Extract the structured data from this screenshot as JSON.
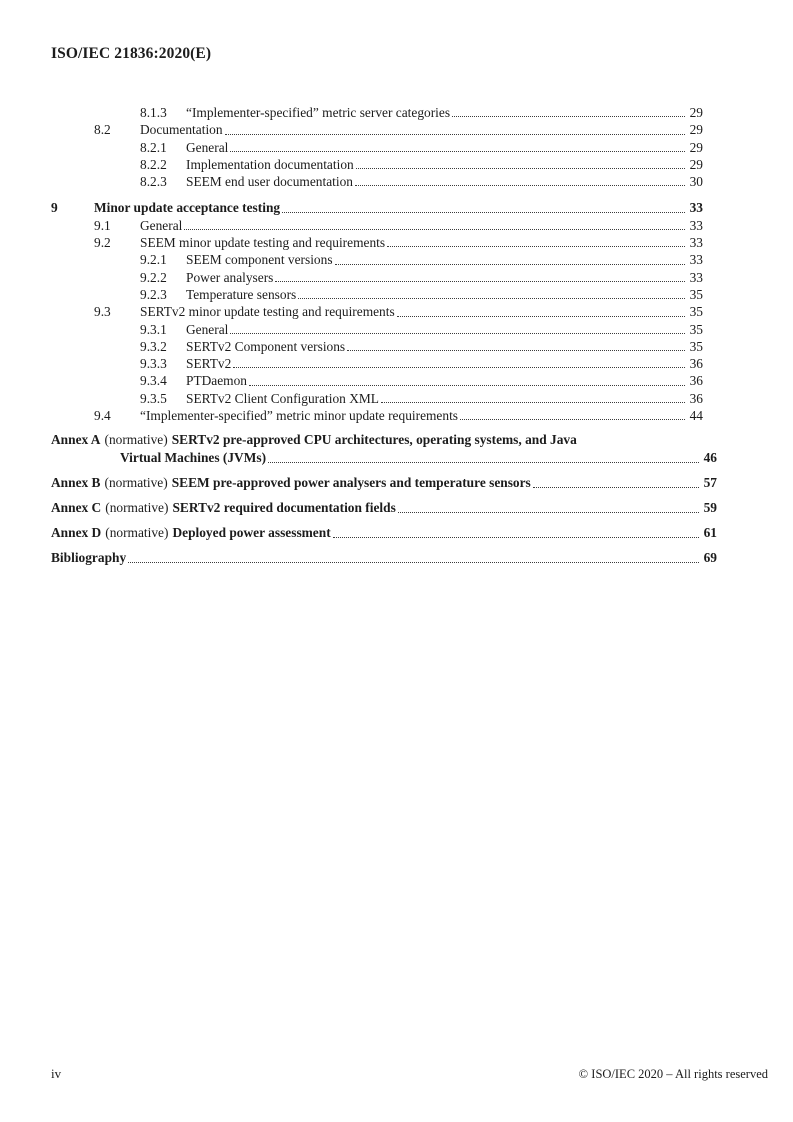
{
  "header": {
    "title": "ISO/IEC 21836:2020(E)"
  },
  "footer": {
    "page_label": "iv",
    "copyright": "© ISO/IEC 2020 – All rights reserved"
  },
  "toc": {
    "sections": [
      {
        "level": 3,
        "number": "8.1.3",
        "title": "“Implementer-specified” metric server categories",
        "page": "29"
      },
      {
        "level": 2,
        "number": "8.2",
        "title": "Documentation",
        "page": "29"
      },
      {
        "level": 3,
        "number": "8.2.1",
        "title": "General",
        "page": "29"
      },
      {
        "level": 3,
        "number": "8.2.2",
        "title": "Implementation documentation",
        "page": "29"
      },
      {
        "level": 3,
        "number": "8.2.3",
        "title": "SEEM end user documentation",
        "page": "30"
      },
      {
        "level": 1,
        "number": "9",
        "title": "Minor update acceptance testing",
        "page": "33",
        "bold": true,
        "section_start": true
      },
      {
        "level": 2,
        "number": "9.1",
        "title": "General",
        "page": "33"
      },
      {
        "level": 2,
        "number": "9.2",
        "title": "SEEM minor update testing and requirements",
        "page": "33"
      },
      {
        "level": 3,
        "number": "9.2.1",
        "title": "SEEM component versions",
        "page": "33"
      },
      {
        "level": 3,
        "number": "9.2.2",
        "title": "Power analysers",
        "page": "33"
      },
      {
        "level": 3,
        "number": "9.2.3",
        "title": "Temperature sensors",
        "page": "35"
      },
      {
        "level": 2,
        "number": "9.3",
        "title": "SERTv2 minor update testing and requirements",
        "page": "35"
      },
      {
        "level": 3,
        "number": "9.3.1",
        "title": "General",
        "page": "35"
      },
      {
        "level": 3,
        "number": "9.3.2",
        "title": "SERTv2 Component versions",
        "page": "35"
      },
      {
        "level": 3,
        "number": "9.3.3",
        "title": "SERTv2",
        "page": "36"
      },
      {
        "level": 3,
        "number": "9.3.4",
        "title": "PTDaemon",
        "page": "36"
      },
      {
        "level": 3,
        "number": "9.3.5",
        "title": "SERTv2 Client Configuration XML",
        "page": "36"
      },
      {
        "level": 2,
        "number": "9.4",
        "title": "“Implementer-specified” metric minor update requirements",
        "page": "44"
      }
    ],
    "back_matter": [
      {
        "label": "Annex A",
        "qualifier": "(normative)",
        "title": "SERTv2 pre-approved CPU architectures, operating systems, and Java",
        "continuation": "Virtual Machines (JVMs)",
        "page": "46"
      },
      {
        "label": "Annex B",
        "qualifier": "(normative)",
        "title": "SEEM pre-approved power analysers and temperature sensors",
        "page": "57"
      },
      {
        "label": "Annex C",
        "qualifier": "(normative)",
        "title": "SERTv2 required documentation fields",
        "page": "59"
      },
      {
        "label": "Annex D",
        "qualifier": "(normative)",
        "title": "Deployed power assessment",
        "page": "61"
      },
      {
        "label": "Bibliography",
        "page": "69"
      }
    ]
  }
}
